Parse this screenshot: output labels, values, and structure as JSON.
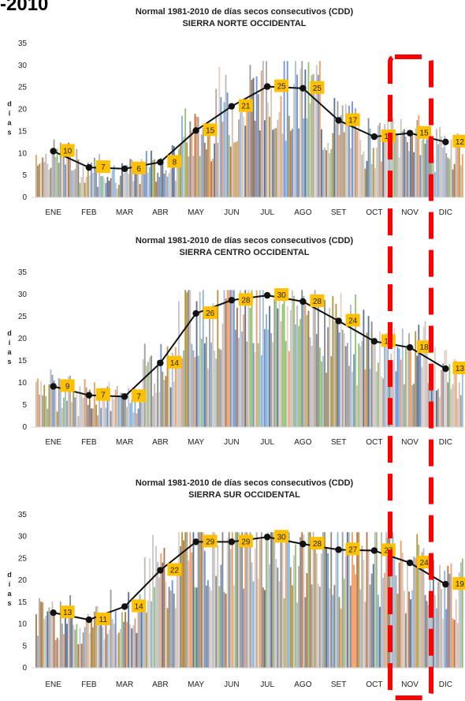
{
  "corner_text": "-2010",
  "colors": {
    "line": "#111111",
    "label_box": "#ffc000",
    "highlight": "#ff0000",
    "bars": [
      "#4472c4",
      "#ed7d31",
      "#a5a5a5",
      "#7f7f7f",
      "#5b9bd5",
      "#70ad47",
      "#264478",
      "#9e480e",
      "#636363",
      "#997300",
      "#c9b5a5",
      "#b4b4b4",
      "#d6c3b4",
      "#9c8a7c",
      "#8fa7c4",
      "#c4a9a0"
    ]
  },
  "chart_data": [
    {
      "type": "bar",
      "title": "Normal 1981-2010 de días secos consecutivos  (CDD)",
      "subtitle": "SIERRA NORTE OCCIDENTAL",
      "ylabel": "días",
      "ylim": [
        0,
        35
      ],
      "yticks": [
        0,
        5,
        10,
        15,
        20,
        25,
        30,
        35
      ],
      "categories": [
        "ENE",
        "FEB",
        "MAR",
        "ABR",
        "MAY",
        "JUN",
        "JUL",
        "AGO",
        "SET",
        "OCT",
        "NOV",
        "DIC"
      ],
      "values": [
        10,
        7,
        6,
        8,
        15,
        21,
        25,
        25,
        17,
        14,
        15,
        12
      ],
      "mean_line": [
        10.5,
        6.8,
        6.5,
        8.0,
        15.2,
        20.7,
        25.2,
        24.8,
        17.5,
        13.8,
        14.6,
        12.6
      ]
    },
    {
      "type": "bar",
      "title": "Normal 1981-2010 de días secos consecutivos  (CDD)",
      "subtitle": "SIERRA CENTRO OCCIDENTAL",
      "ylabel": "días",
      "ylim": [
        0,
        35
      ],
      "yticks": [
        0,
        5,
        10,
        15,
        20,
        25,
        30,
        35
      ],
      "categories": [
        "ENE",
        "FEB",
        "MAR",
        "ABR",
        "MAY",
        "JUN",
        "JUL",
        "AGO",
        "SET",
        "OCT",
        "NOV",
        "DIC"
      ],
      "values": [
        9,
        7,
        7,
        14,
        26,
        28,
        30,
        28,
        24,
        19,
        18,
        13
      ],
      "mean_line": [
        9.2,
        7.2,
        6.9,
        14.5,
        25.7,
        28.7,
        29.8,
        28.4,
        24.0,
        19.4,
        18.0,
        13.2
      ]
    },
    {
      "type": "bar",
      "title": "Normal 1981-2010 de días secos consecutivos  (CDD)",
      "subtitle": "SIERRA SUR OCCIDENTAL",
      "ylabel": "días",
      "ylim": [
        0,
        35
      ],
      "yticks": [
        0,
        5,
        10,
        15,
        20,
        25,
        30,
        35
      ],
      "categories": [
        "ENE",
        "FEB",
        "MAR",
        "ABR",
        "MAY",
        "JUN",
        "JUL",
        "AGO",
        "SET",
        "OCT",
        "NOV",
        "DIC"
      ],
      "values": [
        13,
        11,
        14,
        22,
        29,
        29,
        30,
        28,
        27,
        27,
        24,
        19
      ],
      "mean_line": [
        12.6,
        11.0,
        14.0,
        22.3,
        28.8,
        28.8,
        29.9,
        28.3,
        27.0,
        26.8,
        24.0,
        19.1
      ]
    }
  ]
}
